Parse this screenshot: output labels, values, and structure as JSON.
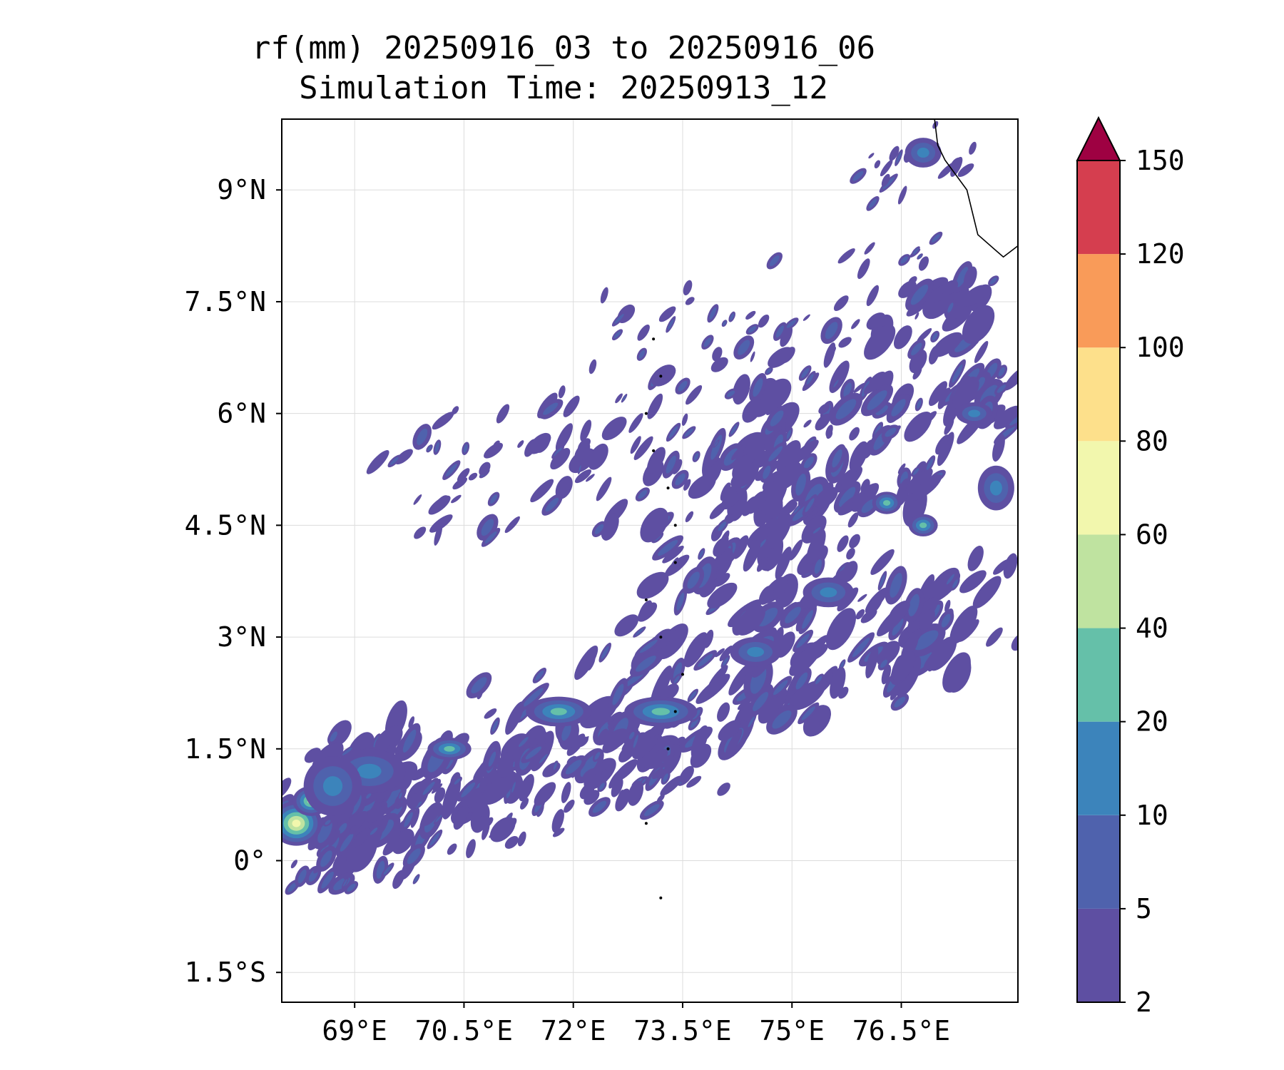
{
  "title": {
    "line1": "rf(mm) 20250916_03 to 20250916_06",
    "line2": "Simulation Time: 20250913_12"
  },
  "map": {
    "lon_range": [
      68.0,
      78.1
    ],
    "lat_range": [
      -1.9,
      9.95
    ],
    "lon_ticks": [
      {
        "value": 69.0,
        "label": "69°E"
      },
      {
        "value": 70.5,
        "label": "70.5°E"
      },
      {
        "value": 72.0,
        "label": "72°E"
      },
      {
        "value": 73.5,
        "label": "73.5°E"
      },
      {
        "value": 75.0,
        "label": "75°E"
      },
      {
        "value": 76.5,
        "label": "76.5°E"
      }
    ],
    "lat_ticks": [
      {
        "value": 9.0,
        "label": "9°N"
      },
      {
        "value": 7.5,
        "label": "7.5°N"
      },
      {
        "value": 6.0,
        "label": "6°N"
      },
      {
        "value": 4.5,
        "label": "4.5°N"
      },
      {
        "value": 3.0,
        "label": "3°N"
      },
      {
        "value": 1.5,
        "label": "1.5°N"
      },
      {
        "value": 0.0,
        "label": "0°"
      },
      {
        "value": -1.5,
        "label": "1.5°S"
      }
    ],
    "grid": true,
    "coastline_india": [
      [
        76.95,
        10.0
      ],
      [
        77.0,
        9.6
      ],
      [
        77.1,
        9.4
      ],
      [
        77.4,
        9.0
      ],
      [
        77.55,
        8.4
      ],
      [
        77.9,
        8.1
      ],
      [
        78.1,
        8.25
      ]
    ],
    "rain_cells": [
      {
        "lon": 68.2,
        "lat": 0.5,
        "rx": 0.35,
        "ry": 0.3,
        "level": 5
      },
      {
        "lon": 68.4,
        "lat": 0.8,
        "rx": 0.25,
        "ry": 0.2,
        "level": 4
      },
      {
        "lon": 69.2,
        "lat": 1.2,
        "rx": 0.5,
        "ry": 0.3,
        "level": 2
      },
      {
        "lon": 68.7,
        "lat": 1.0,
        "rx": 0.4,
        "ry": 0.4,
        "level": 2
      },
      {
        "lon": 70.3,
        "lat": 1.5,
        "rx": 0.3,
        "ry": 0.15,
        "level": 3
      },
      {
        "lon": 71.8,
        "lat": 2.0,
        "rx": 0.45,
        "ry": 0.2,
        "level": 3
      },
      {
        "lon": 73.2,
        "lat": 2.0,
        "rx": 0.5,
        "ry": 0.2,
        "level": 3
      },
      {
        "lon": 74.5,
        "lat": 2.8,
        "rx": 0.35,
        "ry": 0.2,
        "level": 2
      },
      {
        "lon": 75.5,
        "lat": 3.6,
        "rx": 0.35,
        "ry": 0.2,
        "level": 2
      },
      {
        "lon": 76.3,
        "lat": 4.8,
        "rx": 0.2,
        "ry": 0.15,
        "level": 3
      },
      {
        "lon": 76.8,
        "lat": 4.5,
        "rx": 0.2,
        "ry": 0.15,
        "level": 3
      },
      {
        "lon": 77.8,
        "lat": 5.0,
        "rx": 0.25,
        "ry": 0.3,
        "level": 2
      },
      {
        "lon": 77.5,
        "lat": 6.0,
        "rx": 0.25,
        "ry": 0.15,
        "level": 2
      },
      {
        "lon": 76.8,
        "lat": 9.5,
        "rx": 0.25,
        "ry": 0.2,
        "level": 2
      }
    ]
  },
  "colorbar": {
    "levels": [
      {
        "label": "2",
        "color": "#5e4fa2"
      },
      {
        "label": "5",
        "color": "#4f62ad"
      },
      {
        "label": "10",
        "color": "#3c84bb"
      },
      {
        "label": "20",
        "color": "#65c0a9"
      },
      {
        "label": "40",
        "color": "#bfe3a0"
      },
      {
        "label": "60",
        "color": "#f2f7ad"
      },
      {
        "label": "80",
        "color": "#fde08b"
      },
      {
        "label": "100",
        "color": "#f99b59"
      },
      {
        "label": "120",
        "color": "#d53e4f"
      },
      {
        "label": "150",
        "color": "#9e0142"
      }
    ],
    "extend": "max"
  }
}
